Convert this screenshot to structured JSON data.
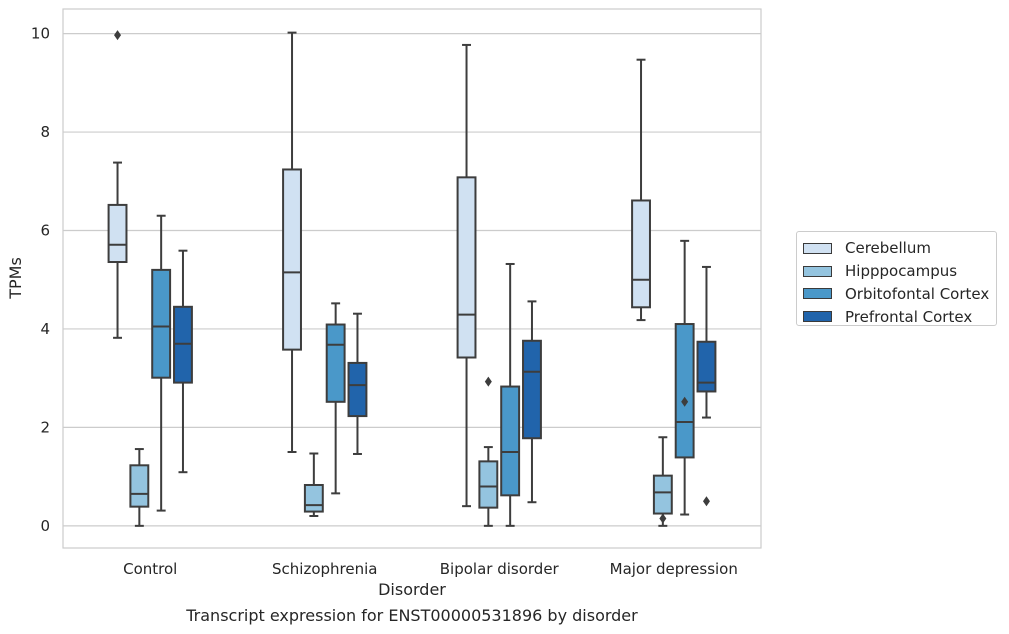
{
  "caption": "Transcript expression for ENST00000531896 by disorder",
  "chart_data": {
    "type": "box",
    "title": "",
    "xlabel": "Disorder",
    "ylabel": "TPMs",
    "ylim": [
      -0.45,
      10.5
    ],
    "yticks": [
      0,
      2,
      4,
      6,
      8,
      10
    ],
    "grid": "horizontal",
    "legend_position": "right",
    "categories": [
      "Control",
      "Schizophrenia",
      "Bipolar disorder",
      "Major depression"
    ],
    "series": [
      {
        "name": "Cerebellum",
        "color": "#d0e1f2",
        "boxes": [
          {
            "min": 3.82,
            "q1": 5.36,
            "median": 5.71,
            "q3": 6.52,
            "max": 7.38,
            "outliers": [
              9.97
            ]
          },
          {
            "min": 1.5,
            "q1": 3.58,
            "median": 5.15,
            "q3": 7.24,
            "max": 10.02,
            "outliers": []
          },
          {
            "min": 0.4,
            "q1": 3.42,
            "median": 4.29,
            "q3": 7.08,
            "max": 9.77,
            "outliers": []
          },
          {
            "min": 4.18,
            "q1": 4.44,
            "median": 5.0,
            "q3": 6.61,
            "max": 9.47,
            "outliers": []
          }
        ]
      },
      {
        "name": "Hipppocampus",
        "color": "#94c4df",
        "boxes": [
          {
            "min": 0.0,
            "q1": 0.39,
            "median": 0.65,
            "q3": 1.23,
            "max": 1.56,
            "outliers": []
          },
          {
            "min": 0.2,
            "q1": 0.29,
            "median": 0.42,
            "q3": 0.83,
            "max": 1.47,
            "outliers": []
          },
          {
            "min": 0.0,
            "q1": 0.37,
            "median": 0.8,
            "q3": 1.31,
            "max": 1.6,
            "outliers": [
              2.93
            ]
          },
          {
            "min": 0.0,
            "q1": 0.25,
            "median": 0.68,
            "q3": 1.02,
            "max": 1.8,
            "outliers": [
              0.15
            ]
          }
        ]
      },
      {
        "name": "Orbitofontal Cortex",
        "color": "#4a98c9",
        "boxes": [
          {
            "min": 0.31,
            "q1": 3.01,
            "median": 4.05,
            "q3": 5.2,
            "max": 6.3,
            "outliers": []
          },
          {
            "min": 0.66,
            "q1": 2.52,
            "median": 3.68,
            "q3": 4.09,
            "max": 4.52,
            "outliers": []
          },
          {
            "min": 0.0,
            "q1": 0.62,
            "median": 1.5,
            "q3": 2.83,
            "max": 5.32,
            "outliers": []
          },
          {
            "min": 0.23,
            "q1": 1.39,
            "median": 2.11,
            "q3": 4.1,
            "max": 5.79,
            "outliers": [
              2.52
            ]
          }
        ]
      },
      {
        "name": "Prefrontal Cortex",
        "color": "#2164ab",
        "boxes": [
          {
            "min": 1.09,
            "q1": 2.91,
            "median": 3.7,
            "q3": 4.45,
            "max": 5.59,
            "outliers": []
          },
          {
            "min": 1.46,
            "q1": 2.23,
            "median": 2.86,
            "q3": 3.31,
            "max": 4.31,
            "outliers": []
          },
          {
            "min": 0.48,
            "q1": 1.78,
            "median": 3.13,
            "q3": 3.76,
            "max": 4.56,
            "outliers": []
          },
          {
            "min": 2.2,
            "q1": 2.73,
            "median": 2.91,
            "q3": 3.74,
            "max": 5.26,
            "outliers": [
              0.5
            ]
          }
        ]
      }
    ]
  }
}
